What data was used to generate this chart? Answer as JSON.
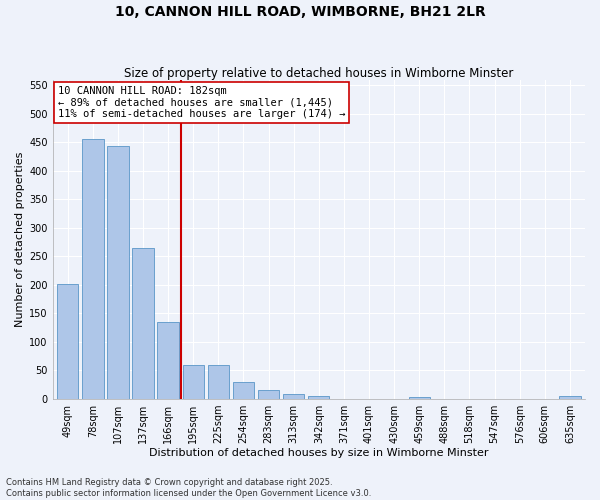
{
  "title": "10, CANNON HILL ROAD, WIMBORNE, BH21 2LR",
  "subtitle": "Size of property relative to detached houses in Wimborne Minster",
  "xlabel": "Distribution of detached houses by size in Wimborne Minster",
  "ylabel": "Number of detached properties",
  "categories": [
    "49sqm",
    "78sqm",
    "107sqm",
    "137sqm",
    "166sqm",
    "195sqm",
    "225sqm",
    "254sqm",
    "283sqm",
    "313sqm",
    "342sqm",
    "371sqm",
    "401sqm",
    "430sqm",
    "459sqm",
    "488sqm",
    "518sqm",
    "547sqm",
    "576sqm",
    "606sqm",
    "635sqm"
  ],
  "values": [
    201,
    456,
    444,
    265,
    135,
    60,
    60,
    30,
    15,
    9,
    5,
    0,
    0,
    0,
    4,
    0,
    0,
    0,
    0,
    0,
    5
  ],
  "bar_color": "#aec6e8",
  "bar_edge_color": "#5a96c8",
  "vline_x": 4.5,
  "vline_color": "#cc0000",
  "annotation_line1": "10 CANNON HILL ROAD: 182sqm",
  "annotation_line2": "← 89% of detached houses are smaller (1,445)",
  "annotation_line3": "11% of semi-detached houses are larger (174) →",
  "annotation_box_color": "#ffffff",
  "annotation_box_edge": "#cc0000",
  "ylim": [
    0,
    560
  ],
  "yticks": [
    0,
    50,
    100,
    150,
    200,
    250,
    300,
    350,
    400,
    450,
    500,
    550
  ],
  "footnote": "Contains HM Land Registry data © Crown copyright and database right 2025.\nContains public sector information licensed under the Open Government Licence v3.0.",
  "bg_color": "#eef2fa",
  "grid_color": "#ffffff",
  "title_fontsize": 10,
  "subtitle_fontsize": 8.5,
  "axis_label_fontsize": 8,
  "tick_fontsize": 7,
  "footnote_fontsize": 6,
  "annot_fontsize": 7.5
}
